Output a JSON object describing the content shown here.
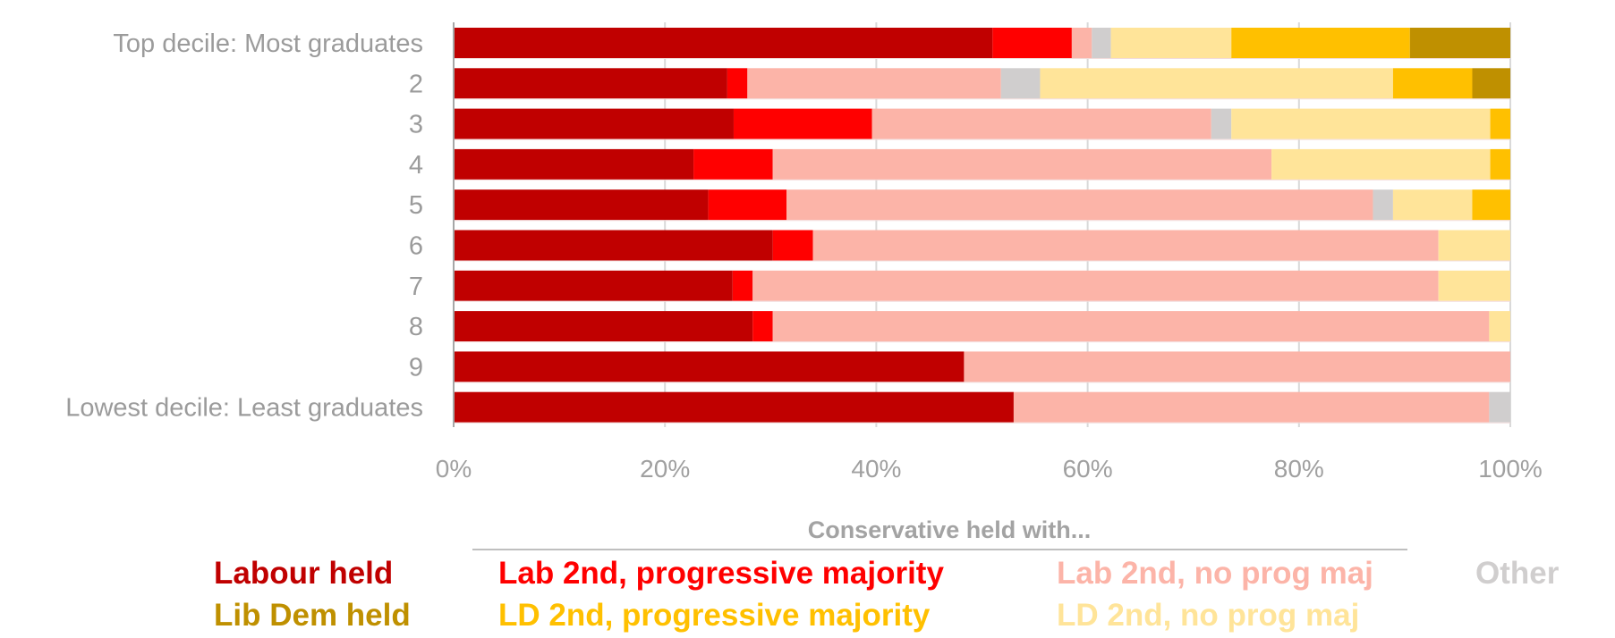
{
  "chart_data": {
    "type": "bar",
    "orientation": "horizontal",
    "stacked": "100%",
    "title": "",
    "xlabel": "",
    "ylabel": "",
    "xlim": [
      0,
      100
    ],
    "grid": true,
    "categories": [
      "Top decile: Most graduates",
      "2",
      "3",
      "4",
      "5",
      "6",
      "7",
      "8",
      "9",
      "Lowest decile: Least graduates"
    ],
    "x_ticks": [
      "0%",
      "20%",
      "40%",
      "60%",
      "80%",
      "100%"
    ],
    "x_tick_values": [
      0,
      20,
      40,
      60,
      80,
      100
    ],
    "series": [
      {
        "name": "Labour held",
        "color": "#c00000",
        "values": [
          51.0,
          25.9,
          26.5,
          22.7,
          24.1,
          30.2,
          26.4,
          28.3,
          48.3,
          53.0
        ]
      },
      {
        "name": "Lab 2nd, progressive majority",
        "color": "#ff0000",
        "values": [
          7.5,
          1.9,
          13.1,
          7.5,
          7.4,
          3.8,
          1.9,
          1.9,
          0,
          0
        ]
      },
      {
        "name": "Lab 2nd, no prog maj",
        "color": "#fcb4a8",
        "values": [
          1.9,
          24.0,
          32.1,
          47.2,
          55.5,
          59.2,
          64.9,
          67.8,
          51.7,
          45.0
        ]
      },
      {
        "name": "Other",
        "color": "#d0cece",
        "values": [
          1.8,
          3.7,
          1.9,
          0,
          1.9,
          0,
          0,
          0,
          0,
          2.0
        ]
      },
      {
        "name": "LD 2nd, no prog maj",
        "color": "#ffe499",
        "values": [
          11.4,
          33.4,
          24.5,
          20.7,
          7.5,
          6.8,
          6.8,
          2.0,
          0,
          0
        ]
      },
      {
        "name": "LD 2nd, progressive majority",
        "color": "#ffc000",
        "values": [
          16.9,
          7.5,
          1.9,
          1.9,
          3.6,
          0,
          0,
          0,
          0,
          0
        ]
      },
      {
        "name": "Lib Dem held",
        "color": "#bf9000",
        "values": [
          9.5,
          3.6,
          0,
          0,
          0,
          0,
          0,
          0,
          0,
          0
        ]
      }
    ],
    "legend": {
      "placement": "bottom",
      "group_title": "Conservative held with...",
      "rows": [
        [
          "Labour held",
          "Lab 2nd, progressive majority",
          "Lab 2nd, no prog maj",
          "Other"
        ],
        [
          "Lib Dem held",
          "LD 2nd, progressive majority",
          "LD 2nd, no prog maj"
        ]
      ]
    }
  },
  "colors": {
    "text_gray": "#9b9b9b",
    "grid": "#d9d9d9",
    "axis": "#a6a6a6"
  }
}
